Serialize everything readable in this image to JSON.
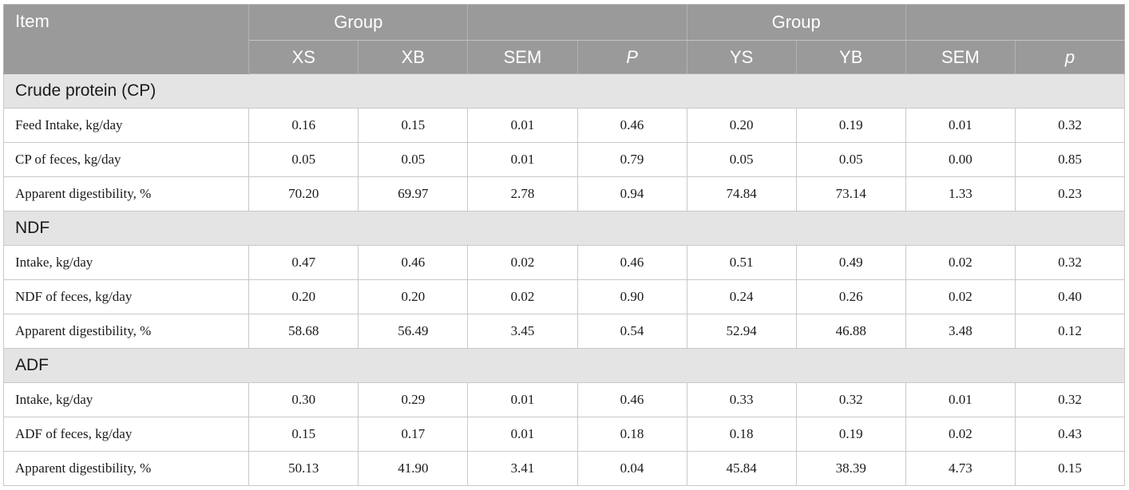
{
  "header": {
    "item": "Item",
    "group_left": "Group",
    "group_right": "Group",
    "columns": [
      "XS",
      "XB",
      "SEM",
      "P",
      "YS",
      "YB",
      "SEM",
      "p"
    ]
  },
  "sections": [
    {
      "title": "Crude protein (CP)",
      "rows": [
        {
          "label": "Feed Intake, kg/day",
          "values": [
            "0.16",
            "0.15",
            "0.01",
            "0.46",
            "0.20",
            "0.19",
            "0.01",
            "0.32"
          ]
        },
        {
          "label": "CP of feces, kg/day",
          "values": [
            "0.05",
            "0.05",
            "0.01",
            "0.79",
            "0.05",
            "0.05",
            "0.00",
            "0.85"
          ]
        },
        {
          "label": "Apparent digestibility, %",
          "values": [
            "70.20",
            "69.97",
            "2.78",
            "0.94",
            "74.84",
            "73.14",
            "1.33",
            "0.23"
          ]
        }
      ]
    },
    {
      "title": "NDF",
      "rows": [
        {
          "label": "Intake, kg/day",
          "values": [
            "0.47",
            "0.46",
            "0.02",
            "0.46",
            "0.51",
            "0.49",
            "0.02",
            "0.32"
          ]
        },
        {
          "label": "NDF of feces, kg/day",
          "values": [
            "0.20",
            "0.20",
            "0.02",
            "0.90",
            "0.24",
            "0.26",
            "0.02",
            "0.40"
          ]
        },
        {
          "label": "Apparent digestibility, %",
          "values": [
            "58.68",
            "56.49",
            "3.45",
            "0.54",
            "52.94",
            "46.88",
            "3.48",
            "0.12"
          ]
        }
      ]
    },
    {
      "title": "ADF",
      "rows": [
        {
          "label": "Intake, kg/day",
          "values": [
            "0.30",
            "0.29",
            "0.01",
            "0.46",
            "0.33",
            "0.32",
            "0.01",
            "0.32"
          ]
        },
        {
          "label": "ADF of feces, kg/day",
          "values": [
            "0.15",
            "0.17",
            "0.01",
            "0.18",
            "0.18",
            "0.19",
            "0.02",
            "0.43"
          ]
        },
        {
          "label": "Apparent digestibility, %",
          "values": [
            "50.13",
            "41.90",
            "3.41",
            "0.04",
            "45.84",
            "38.39",
            "4.73",
            "0.15"
          ]
        }
      ]
    }
  ]
}
